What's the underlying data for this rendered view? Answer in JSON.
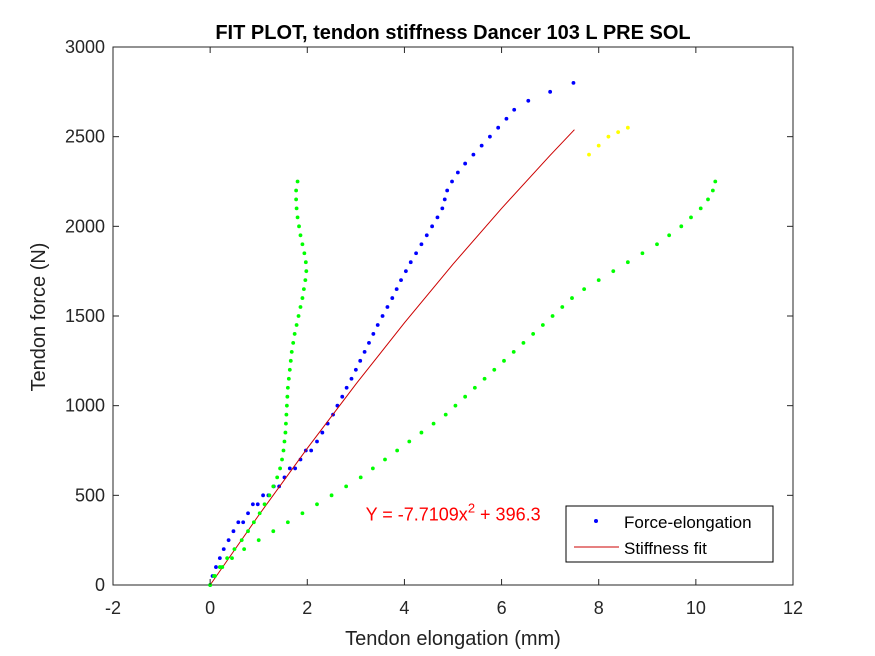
{
  "chart_data": {
    "type": "scatter",
    "title": "FIT PLOT, tendon stiffness Dancer 103 L PRE SOL",
    "xlabel": "Tendon elongation (mm)",
    "ylabel": "Tendon force (N)",
    "xlim": [
      -2,
      12
    ],
    "ylim": [
      0,
      3000
    ],
    "xticks": [
      "-2",
      "0",
      "2",
      "4",
      "6",
      "8",
      "10",
      "12"
    ],
    "yticks": [
      "0",
      "500",
      "1000",
      "1500",
      "2000",
      "2500",
      "3000"
    ],
    "grid": false,
    "legend_position": "bottom-right",
    "annotation": {
      "text": "Y = -7.7109x",
      "superscript": "2",
      "suffix": " + 396.3",
      "x": 3.2,
      "y": 360,
      "color": "#ff0000"
    },
    "legend": [
      {
        "label": "Force-elongation",
        "color": "#0000ff",
        "marker": "dot"
      },
      {
        "label": "Stiffness fit",
        "color": "#cc0000",
        "marker": "line"
      }
    ],
    "series": [
      {
        "name": "Force-elongation",
        "color": "#0000ff",
        "style": "dots",
        "x": [
          0.0,
          0.05,
          0.12,
          0.2,
          0.28,
          0.38,
          0.48,
          0.58,
          0.68,
          0.78,
          0.88,
          0.98,
          1.09,
          1.2,
          1.31,
          1.42,
          1.53,
          1.64,
          1.75,
          1.86,
          1.97,
          2.08,
          2.2,
          2.31,
          2.42,
          2.53,
          2.62,
          2.72,
          2.81,
          2.91,
          3.0,
          3.09,
          3.18,
          3.27,
          3.36,
          3.45,
          3.55,
          3.65,
          3.75,
          3.84,
          3.93,
          4.03,
          4.13,
          4.24,
          4.35,
          4.46,
          4.57,
          4.68,
          4.78,
          4.83,
          4.88,
          4.98,
          5.1,
          5.25,
          5.42,
          5.59,
          5.76,
          5.93,
          6.1,
          6.26,
          6.55,
          7.0,
          7.48
        ],
        "y": [
          0,
          50,
          100,
          150,
          200,
          250,
          300,
          350,
          350,
          400,
          450,
          450,
          500,
          500,
          550,
          550,
          600,
          650,
          650,
          700,
          750,
          750,
          800,
          850,
          900,
          950,
          1000,
          1050,
          1100,
          1150,
          1200,
          1250,
          1300,
          1350,
          1400,
          1450,
          1500,
          1550,
          1600,
          1650,
          1700,
          1750,
          1800,
          1850,
          1900,
          1950,
          2000,
          2050,
          2100,
          2150,
          2200,
          2250,
          2300,
          2350,
          2400,
          2450,
          2500,
          2550,
          2600,
          2650,
          2700,
          2750,
          2800
        ]
      },
      {
        "name": "Stiffness fit",
        "color": "#cc0000",
        "style": "line",
        "x": [
          0,
          1,
          2,
          3,
          4,
          5,
          6,
          7,
          7.5
        ],
        "y": [
          0,
          389,
          762,
          1120,
          1462,
          1789,
          2100,
          2396,
          2539
        ]
      },
      {
        "color": "#00ff00",
        "style": "dots",
        "x": [
          0,
          0.08,
          0.2,
          0.35,
          0.5,
          0.65,
          0.78,
          0.9,
          1.02,
          1.12,
          1.22,
          1.3,
          1.38,
          1.44,
          1.48,
          1.51,
          1.53,
          1.55,
          1.56,
          1.57,
          1.58,
          1.59,
          1.6,
          1.62,
          1.64,
          1.66,
          1.68,
          1.71,
          1.74,
          1.78,
          1.82,
          1.86,
          1.9,
          1.93,
          1.96,
          1.98,
          1.97,
          1.94,
          1.9,
          1.86,
          1.83,
          1.8,
          1.78,
          1.77,
          1.77,
          1.8
        ],
        "y": [
          0,
          50,
          100,
          150,
          200,
          250,
          300,
          350,
          400,
          450,
          500,
          550,
          600,
          650,
          700,
          750,
          800,
          850,
          900,
          950,
          1000,
          1050,
          1100,
          1150,
          1200,
          1250,
          1300,
          1350,
          1400,
          1450,
          1500,
          1550,
          1600,
          1650,
          1700,
          1750,
          1800,
          1850,
          1900,
          1950,
          2000,
          2050,
          2100,
          2150,
          2200,
          2250
        ]
      },
      {
        "color": "#00ff00",
        "style": "dots",
        "x": [
          0,
          0.1,
          0.25,
          0.45,
          0.7,
          1.0,
          1.3,
          1.6,
          1.9,
          2.2,
          2.5,
          2.8,
          3.1,
          3.35,
          3.6,
          3.85,
          4.1,
          4.35,
          4.6,
          4.85,
          5.05,
          5.25,
          5.45,
          5.65,
          5.85,
          6.05,
          6.25,
          6.45,
          6.65,
          6.85,
          7.05,
          7.25,
          7.45,
          7.7,
          8.0,
          8.3,
          8.6,
          8.9,
          9.2,
          9.45,
          9.7,
          9.9,
          10.1,
          10.25,
          10.35,
          10.4
        ],
        "y": [
          0,
          50,
          100,
          150,
          200,
          250,
          300,
          350,
          400,
          450,
          500,
          550,
          600,
          650,
          700,
          750,
          800,
          850,
          900,
          950,
          1000,
          1050,
          1100,
          1150,
          1200,
          1250,
          1300,
          1350,
          1400,
          1450,
          1500,
          1550,
          1600,
          1650,
          1700,
          1750,
          1800,
          1850,
          1900,
          1950,
          2000,
          2050,
          2100,
          2150,
          2200,
          2250
        ]
      },
      {
        "color": "#ffff00",
        "style": "dots",
        "x": [
          7.8,
          8.0,
          8.2,
          8.4,
          8.6
        ],
        "y": [
          2400,
          2450,
          2500,
          2525,
          2550
        ]
      }
    ]
  }
}
